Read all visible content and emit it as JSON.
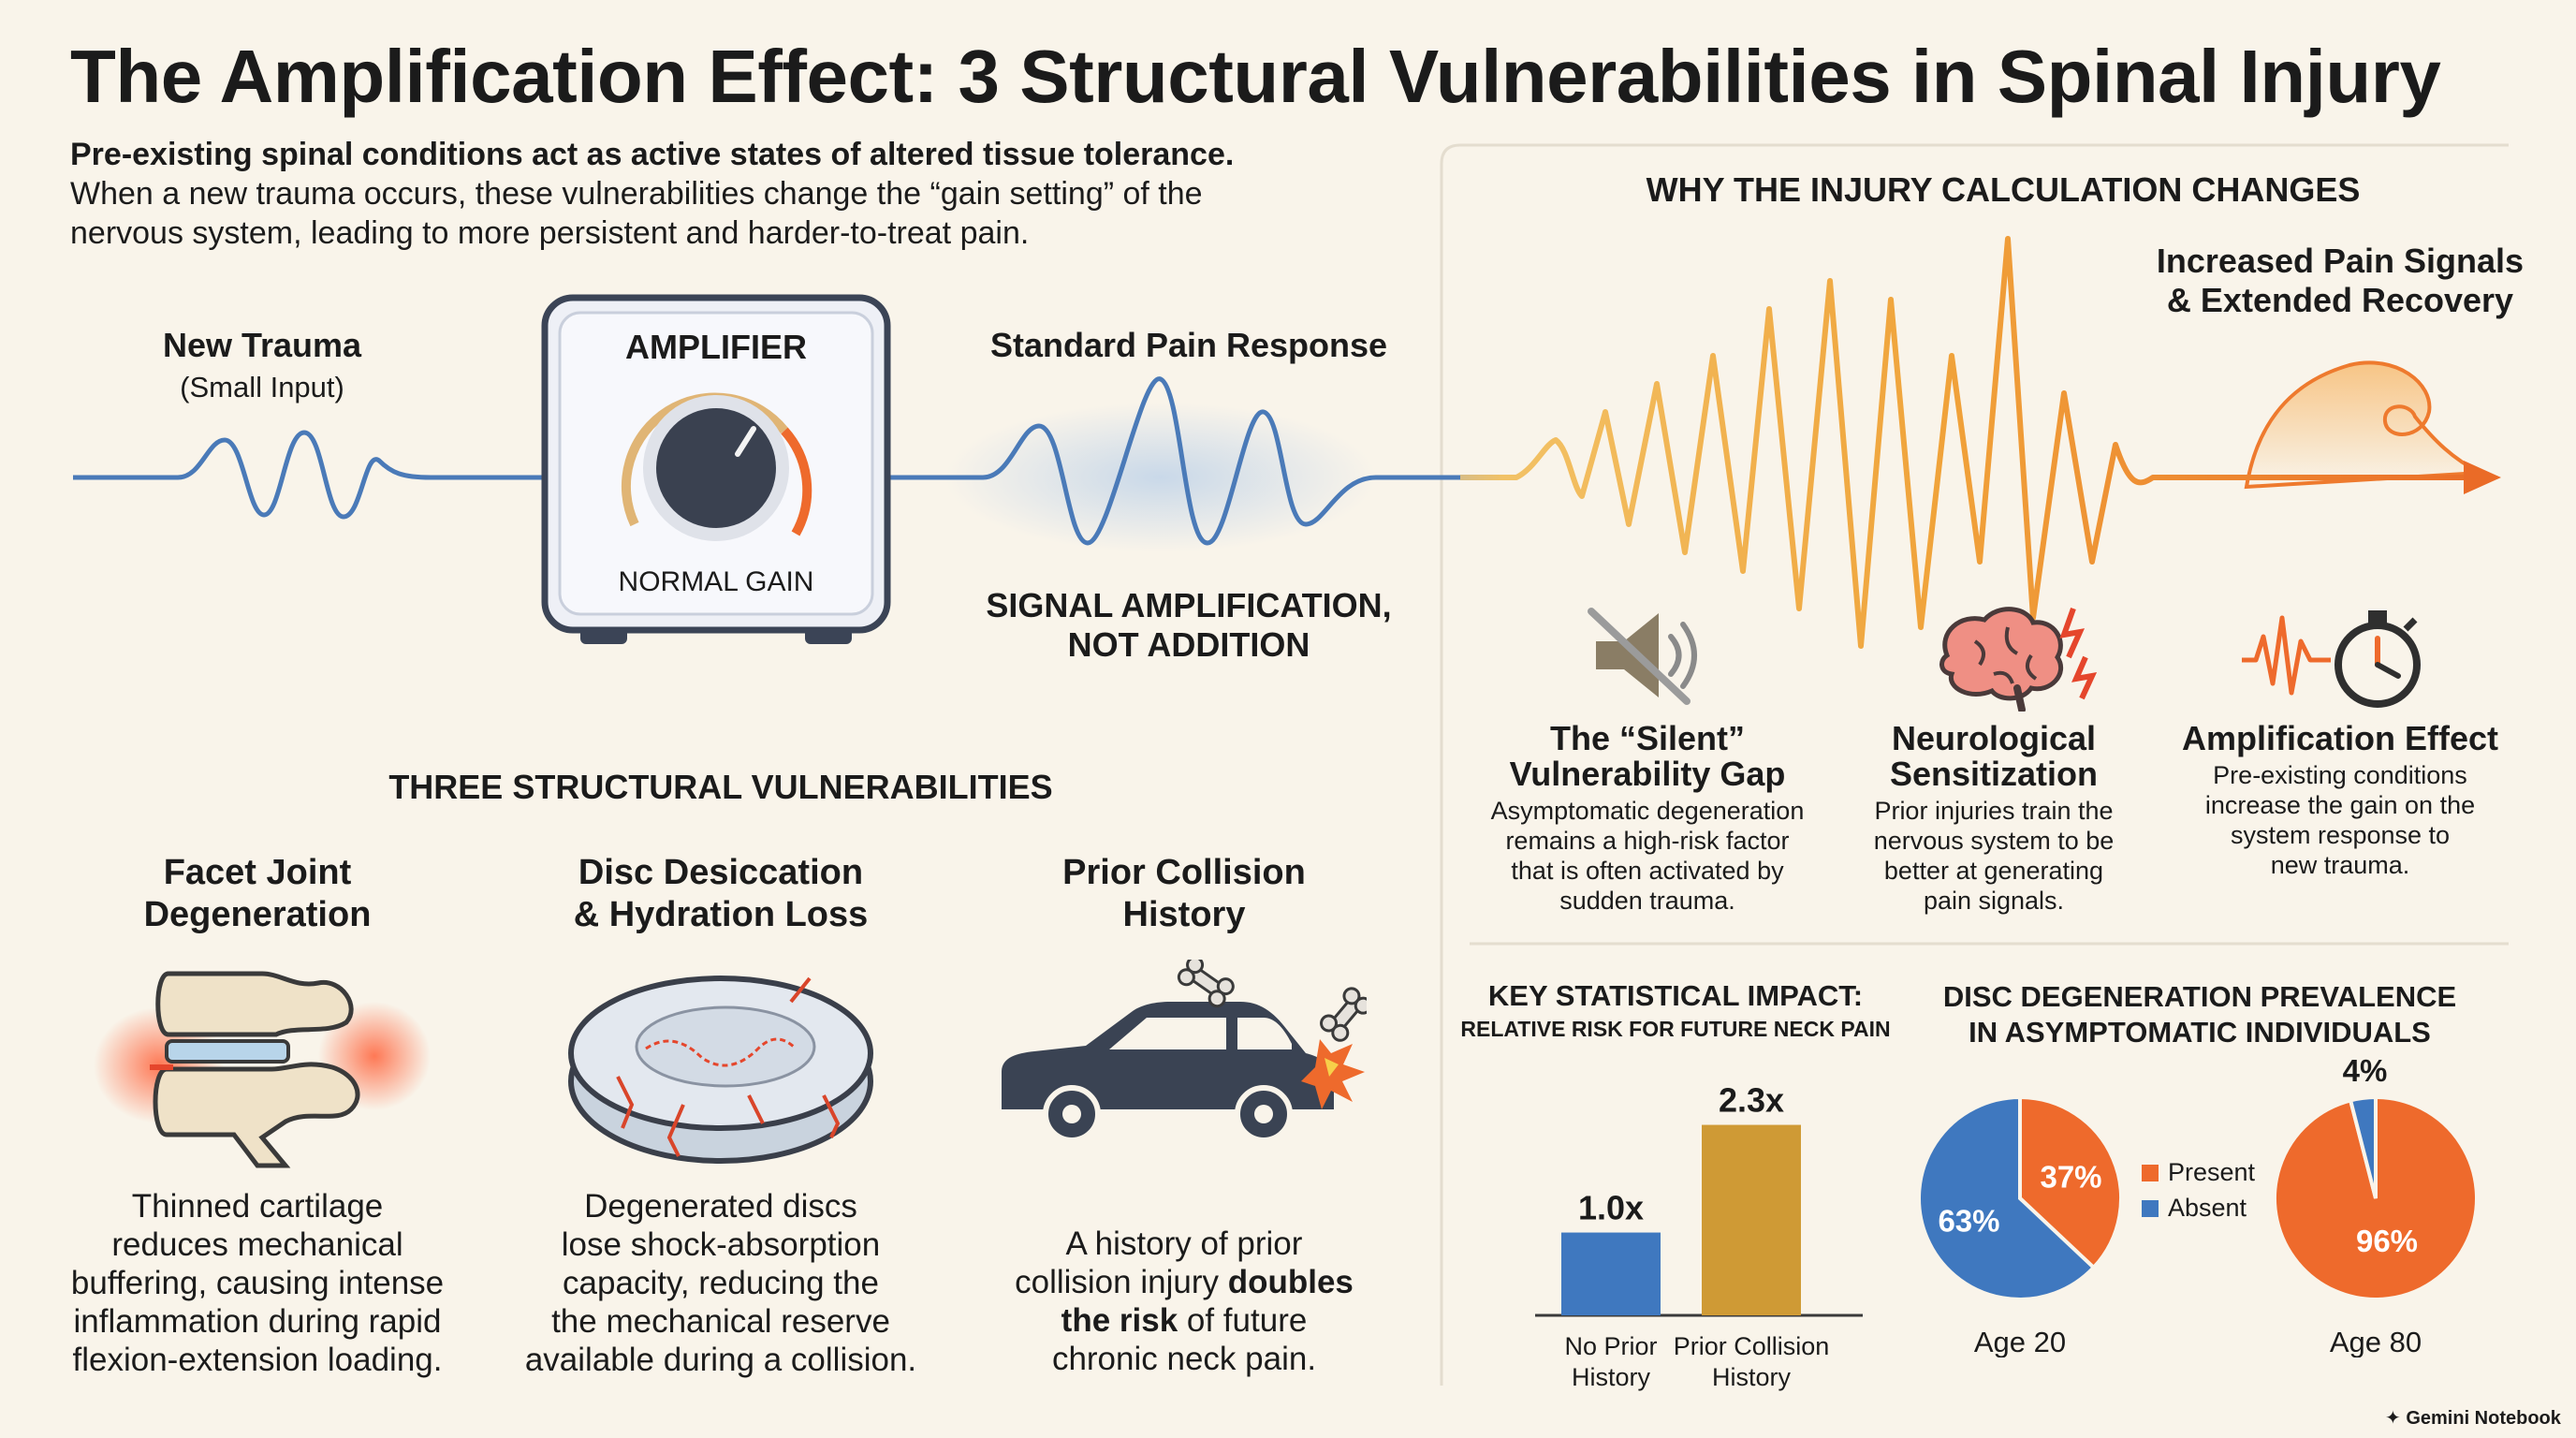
{
  "title": "The Amplification Effect: 3 Structural Vulnerabilities in Spinal Injury",
  "intro": {
    "bold": "Pre-existing spinal conditions act as active states of altered tissue tolerance.",
    "line2": "When a new trauma occurs, these vulnerabilities change the “gain setting” of the",
    "line3": "nervous system, leading to more persistent and harder-to-treat pain."
  },
  "flow": {
    "new_trauma": "New Trauma",
    "small_input": "(Small Input)",
    "amplifier": "AMPLIFIER",
    "normal_gain": "NORMAL GAIN",
    "standard_response": "Standard Pain Response",
    "signal_amp_1": "SIGNAL AMPLIFICATION,",
    "signal_amp_2": "NOT ADDITION"
  },
  "why": {
    "heading": "WHY THE INJURY CALCULATION CHANGES",
    "increased_1": "Increased Pain Signals",
    "increased_2": "& Extended Recovery",
    "items": [
      {
        "icon": "muted-speaker-icon",
        "title1": "The “Silent”",
        "title2": "Vulnerability Gap",
        "desc": [
          "Asymptomatic degeneration",
          "remains a high-risk factor",
          "that is often activated by",
          "sudden trauma."
        ]
      },
      {
        "icon": "brain-icon",
        "title1": "Neurological",
        "title2": "Sensitization",
        "desc": [
          "Prior injuries train the",
          "nervous system to be",
          "better at generating",
          "pain signals."
        ]
      },
      {
        "icon": "stopwatch-icon",
        "title1": "Amplification Effect",
        "title2": "",
        "desc": [
          "Pre-existing conditions",
          "increase the gain on the",
          "system response to",
          "new trauma."
        ]
      }
    ]
  },
  "vulnerabilities": {
    "heading": "THREE STRUCTURAL VULNERABILITIES",
    "items": [
      {
        "icon": "spine-vertebrae-icon",
        "title1": "Facet Joint",
        "title2": "Degeneration",
        "desc": [
          "Thinned cartilage",
          "reduces mechanical",
          "buffering, causing intense",
          "inflammation during rapid",
          "flexion-extension loading."
        ]
      },
      {
        "icon": "cracked-disc-icon",
        "title1": "Disc Desiccation",
        "title2": "& Hydration Loss",
        "desc": [
          "Degenerated discs",
          "lose shock-absorption",
          "capacity, reducing the",
          "the mechanical reserve",
          "available during a collision."
        ]
      },
      {
        "icon": "car-collision-icon",
        "title1": "Prior Collision",
        "title2": "History",
        "desc_pre": "A history of prior",
        "desc_mid_a": "collision injury ",
        "desc_bold_a": "doubles",
        "desc_bold_b": "the risk",
        "desc_mid_b": " of future",
        "desc_end": "chronic neck pain."
      }
    ]
  },
  "chart_data": [
    {
      "type": "bar",
      "title": "KEY STATISTICAL IMPACT:",
      "subtitle": "RELATIVE RISK FOR FUTURE NECK PAIN",
      "categories": [
        [
          "No Prior",
          "History"
        ],
        [
          "Prior Collision",
          "History"
        ]
      ],
      "values": [
        1.0,
        2.3
      ],
      "value_labels": [
        "1.0x",
        "2.3x"
      ],
      "colors": [
        "#3f78bf",
        "#cf9a35"
      ],
      "ylim": [
        0,
        2.6
      ]
    },
    {
      "type": "pie",
      "title": [
        "DISC DEGENERATION PREVALENCE",
        "IN ASYMPTOMATIC INDIVIDUALS"
      ],
      "legend": [
        {
          "name": "Present",
          "color": "#ee6a2c"
        },
        {
          "name": "Absent",
          "color": "#3f78bf"
        }
      ],
      "legend_placement": "between",
      "pies": [
        {
          "label": "Age 20",
          "present": 37,
          "absent": 63,
          "present_label": "37%",
          "absent_label": "63%"
        },
        {
          "label": "Age 80",
          "present": 96,
          "absent": 4,
          "present_label": "96%",
          "absent_label": "4%"
        }
      ]
    }
  ],
  "footer": "Gemini Notebook",
  "colors": {
    "blue": "#4a7ab8",
    "orange": "#ee6a2c",
    "gold": "#e8a43a",
    "navy": "#38404f"
  }
}
